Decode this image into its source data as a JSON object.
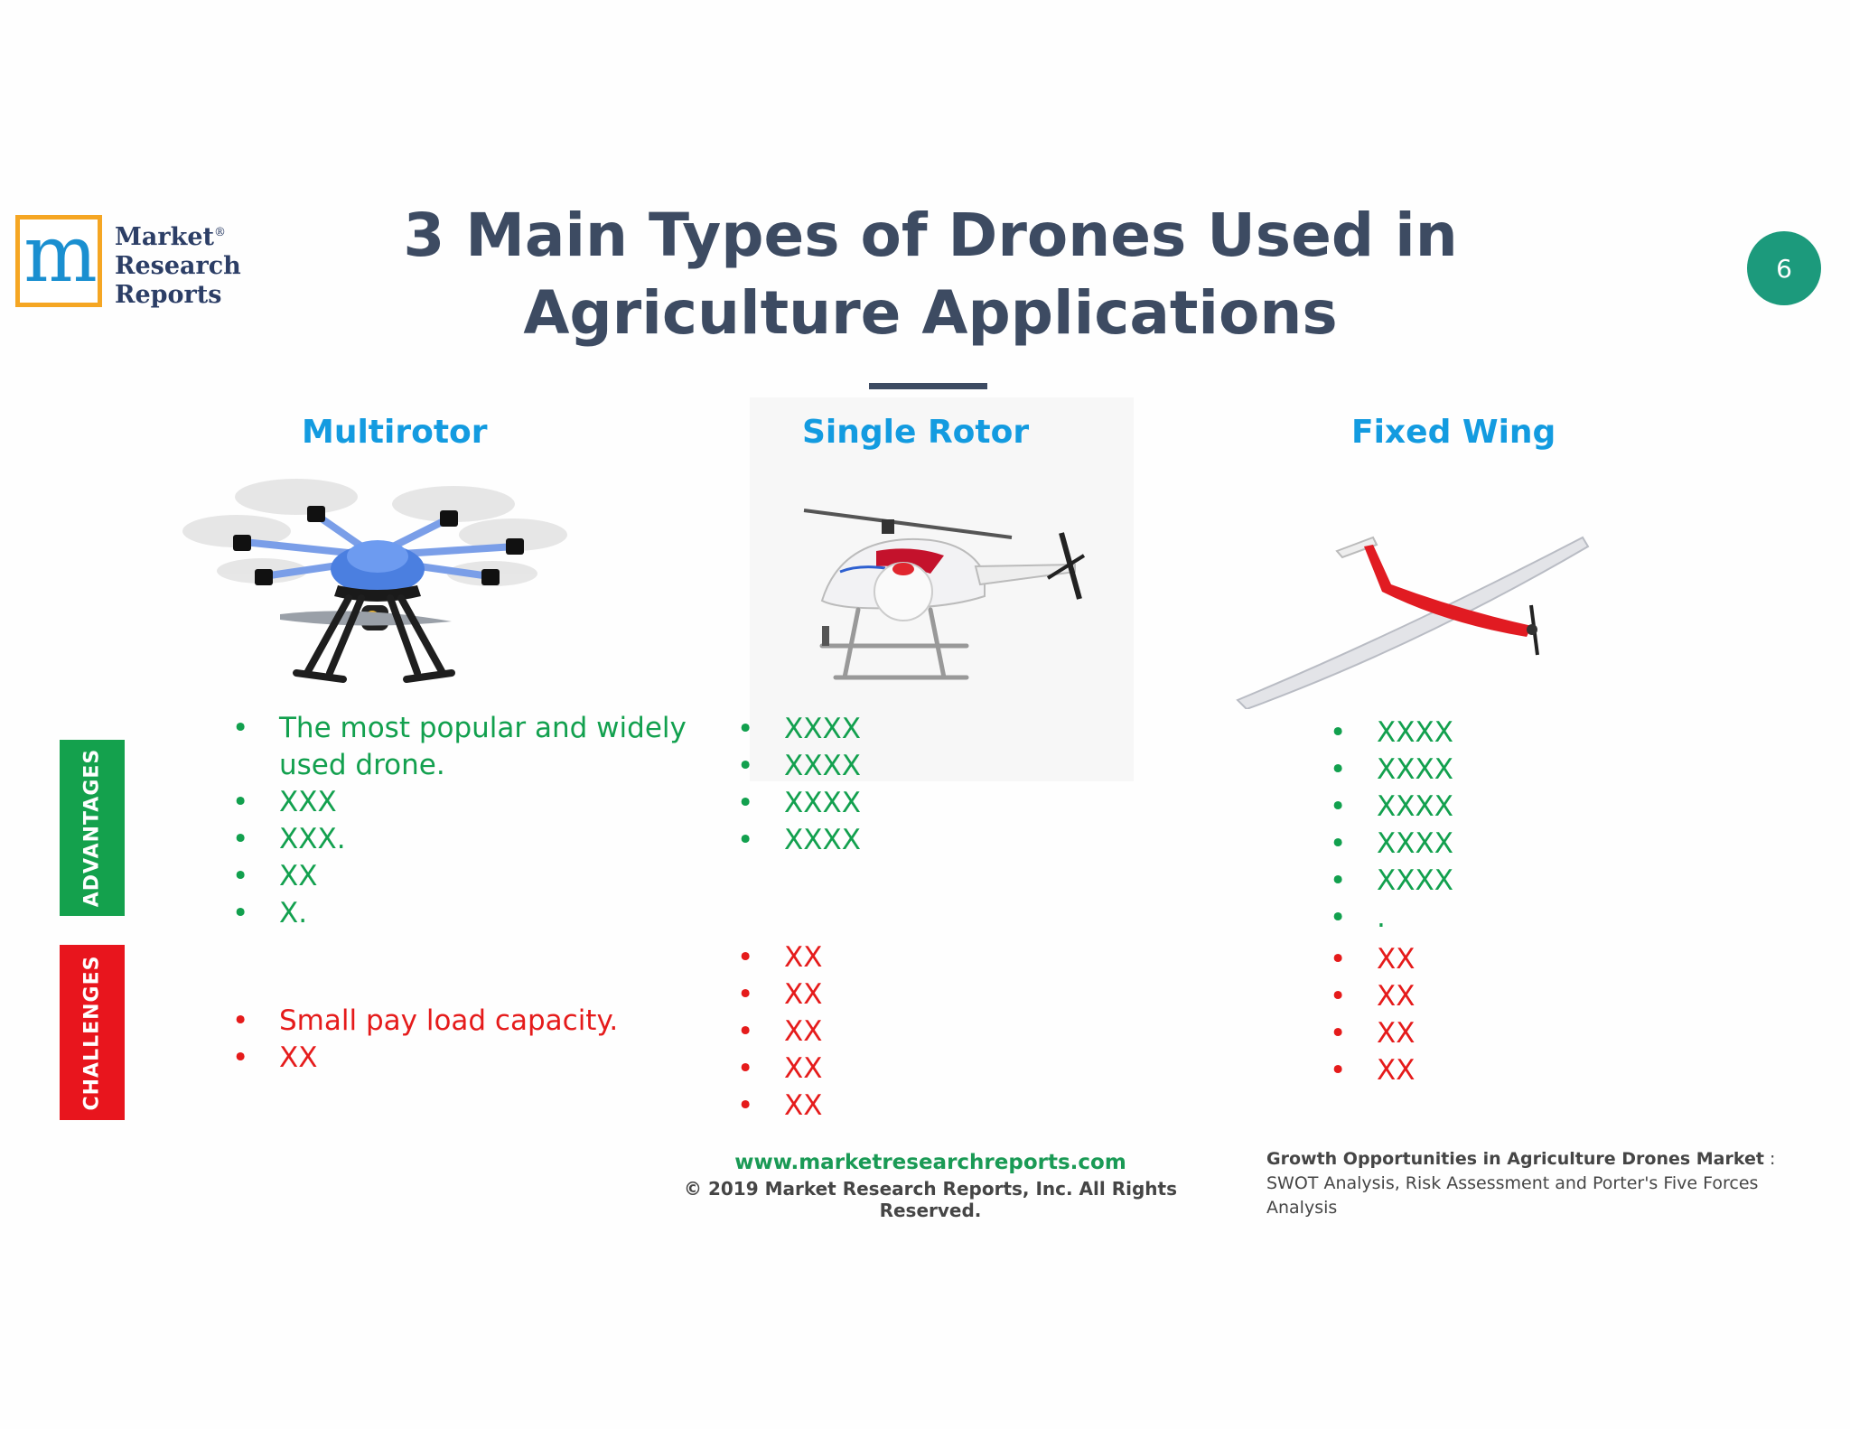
{
  "logo": {
    "letter": "m",
    "line1": "Market",
    "line2": "Research",
    "line3": "Reports",
    "reg": "®"
  },
  "title": {
    "line1": "3 Main Types of Drones Used in",
    "line2": "Agriculture Applications"
  },
  "page_number": "6",
  "side_tabs": {
    "advantages": "ADVANTAGES",
    "challenges": "CHALLENGES"
  },
  "colors": {
    "title": "#3d4b62",
    "heading": "#139be0",
    "advantage": "#12a04e",
    "challenge": "#e51b1b",
    "badge": "#1c9a7c"
  },
  "columns": [
    {
      "heading": "Multirotor",
      "image_icon": "hexacopter-drone-icon",
      "advantages": [
        "The most popular and widely used drone.",
        "XXX",
        "XXX.",
        "XX",
        "X."
      ],
      "challenges": [
        "Small pay load capacity.",
        "XX"
      ]
    },
    {
      "heading": "Single Rotor",
      "image_icon": "helicopter-drone-icon",
      "advantages": [
        "XXXX",
        "XXXX",
        "XXXX",
        "XXXX"
      ],
      "challenges": [
        "XX",
        "XX",
        "XX",
        "XX",
        "XX"
      ]
    },
    {
      "heading": "Fixed Wing",
      "image_icon": "glider-drone-icon",
      "advantages": [
        "XXXX",
        "XXXX",
        "XXXX",
        "XXXX",
        "XXXX",
        "."
      ],
      "challenges": [
        "XX",
        "XX",
        "XX",
        "XX"
      ]
    }
  ],
  "footer": {
    "url": "www.marketresearchreports.com",
    "copyright": "© 2019 Market Research Reports, Inc. All Rights Reserved.",
    "note_bold": "Growth Opportunities in Agriculture Drones Market",
    "note_rest": " : SWOT Analysis, Risk Assessment and Porter's Five Forces Analysis"
  }
}
